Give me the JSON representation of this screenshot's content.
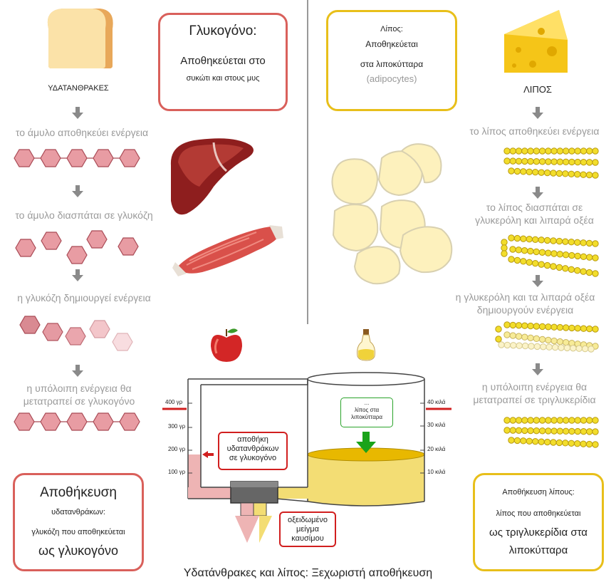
{
  "title": "Υδατάνθρακες και λίπος: Ξεχωριστή αποθήκευση",
  "colors": {
    "carb_red": "#d9605b",
    "fat_yellow": "#e8bf1a",
    "hex_fill": "#e89ca3",
    "chain_yellow": "#f2dd2b",
    "arrow_green": "#1aa31a"
  },
  "carbs": {
    "heading": "ΥΔΑΤΑΝΘΡΑΚΕΣ",
    "step1": "το άμυλο αποθηκεύει ενέργεια",
    "step2": "το άμυλο διασπάται σε γλυκόζη",
    "step3": "η γλυκόζη δημιουργεί ενέργεια",
    "step4_line1": "η υπόλοιπη ενέργεια θα",
    "step4_line2": "μετατραπεί σε γλυκογόνο"
  },
  "glycogen_box": {
    "title": "Γλυκογόνο:",
    "line1": "Αποθηκεύεται στο",
    "line2": "συκώτι και στους μυς"
  },
  "fat_box": {
    "line1": "Λίπος:",
    "line2": "Αποθηκεύεται",
    "line3": "στα λιποκύτταρα",
    "line4": "(adipocytes)"
  },
  "fat": {
    "heading": "ΛΙΠΟΣ",
    "step1": "το λίπος αποθηκεύει ενέργεια",
    "step2_line1": "το λίπος διασπάται σε",
    "step2_line2": "γλυκερόλη και λιπαρά οξέα",
    "step3_line1": "η γλυκερόλη και τα λιπαρά οξέα",
    "step3_line2": "δημιουργούν ενέργεια",
    "step4_line1": "η υπόλοιπη ενέργεια θα",
    "step4_line2": "μετατραπεί σε τριγλυκερίδια"
  },
  "carb_storage_box": {
    "title": "Αποθήκευση",
    "line1": "υδατανθράκων:",
    "line2": "γλυκόζη που αποθηκεύεται",
    "line3": "ως γλυκογόνο"
  },
  "fat_storage_box": {
    "title": "Αποθήκευση λίπους:",
    "line1": "λίπος που αποθηκεύεται",
    "line2": "ως τριγλυκερίδια στα",
    "line3": "λιποκύτταρα"
  },
  "tank": {
    "left_scale": [
      "400 γρ",
      "300 γρ",
      "200 γρ",
      "100 γρ"
    ],
    "right_scale": [
      "40 κιλά",
      "30 κιλά",
      "20 κιλά",
      "10 κιλά"
    ],
    "carb_label": [
      "αποθήκη",
      "υδατανθράκων",
      "σε γλυκογόνο"
    ],
    "fat_label": [
      "...",
      "λίπος στα",
      "λιποκύτταρα"
    ],
    "fuel_label": [
      "οξειδωμένο",
      "μείγμα",
      "καυσίμου"
    ]
  }
}
